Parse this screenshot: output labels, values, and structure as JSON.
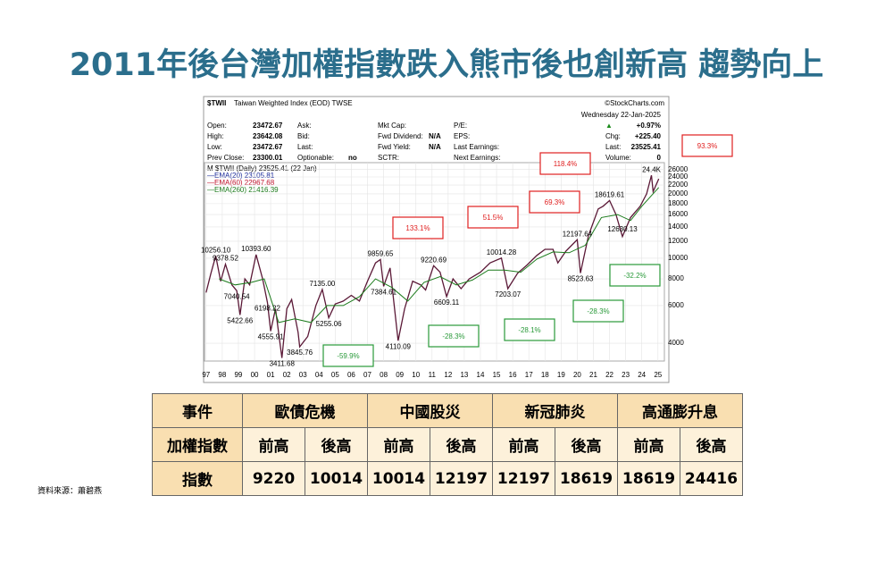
{
  "title": "2011年後台灣加權指數跌入熊市後也創新高 趨勢向上",
  "chart_data": {
    "type": "line",
    "log_scale": true,
    "header": {
      "symbol": "$TWII",
      "name": "Taiwan Weighted Index (EOD) TWSE",
      "copyright": "©StockCharts.com",
      "date": "Wednesday 22-Jan-2025",
      "columns": [
        [
          {
            "label": "Open:",
            "value": "23472.67"
          },
          {
            "label": "High:",
            "value": "23642.08"
          },
          {
            "label": "Low:",
            "value": "23472.67"
          },
          {
            "label": "Prev Close:",
            "value": "23300.01"
          }
        ],
        [
          {
            "label": "Ask:"
          },
          {
            "label": "Bid:"
          },
          {
            "label": "Last:"
          },
          {
            "label": "Optionable:",
            "value": "no"
          }
        ],
        [
          {
            "label": "Mkt Cap:"
          },
          {
            "label": "Fwd Dividend:",
            "value": "N/A"
          },
          {
            "label": "Fwd Yield:",
            "value": "N/A"
          },
          {
            "label": "SCTR:"
          }
        ],
        [
          {
            "label": "P/E:"
          },
          {
            "label": "EPS:"
          },
          {
            "label": "Last Earnings:"
          },
          {
            "label": "Next Earnings:"
          }
        ],
        [
          {
            "label": "▲",
            "value": "+0.97%"
          },
          {
            "label": "Chg:",
            "value": "+225.40"
          },
          {
            "label": "Last:",
            "value": "23525.41"
          },
          {
            "label": "Volume:",
            "value": "0"
          }
        ]
      ],
      "legend": [
        {
          "text": "M $TWII (Daily) 23525.41 (22 Jan)",
          "color": "#000000"
        },
        {
          "text": "—EMA(20) 23105.81",
          "color": "#1a2a9a"
        },
        {
          "text": "—EMA(60) 22967.68",
          "color": "#c0102a"
        },
        {
          "text": "—EMA(260) 21416.39",
          "color": "#1a7a1a"
        }
      ]
    },
    "series": [
      {
        "color": "#5a1836",
        "x": [
          1997.0,
          1997.3,
          1997.6,
          1997.9,
          1998.2,
          1998.6,
          1998.9,
          1999.1,
          1999.4,
          1999.7,
          2000.1,
          2000.5,
          2000.8,
          2001.0,
          2001.3,
          2001.7,
          2002.0,
          2002.3,
          2002.7,
          2002.8,
          2003.3,
          2003.8,
          2004.2,
          2004.6,
          2005.0,
          2005.5,
          2006.0,
          2006.5,
          2007.0,
          2007.5,
          2007.8,
          2008.0,
          2008.4,
          2008.9,
          2009.3,
          2009.8,
          2010.3,
          2010.6,
          2011.1,
          2011.5,
          2011.9,
          2012.3,
          2012.8,
          2013.3,
          2014.0,
          2014.6,
          2015.3,
          2015.7,
          2016.3,
          2016.9,
          2017.5,
          2018.0,
          2018.5,
          2018.8,
          2019.3,
          2019.9,
          2020.0,
          2020.2,
          2020.7,
          2021.3,
          2021.6,
          2022.0,
          2022.4,
          2022.8,
          2023.3,
          2023.9,
          2024.3,
          2024.6,
          2024.7,
          2025.05
        ],
        "values": [
          6900,
          8500,
          10256,
          7800,
          9378,
          7500,
          7040,
          5422,
          8000,
          7500,
          10393,
          8000,
          6198,
          4555,
          5800,
          3411,
          5800,
          6400,
          4500,
          3845,
          4300,
          6000,
          7135,
          5255,
          6100,
          6300,
          6700,
          6300,
          7800,
          9500,
          9859,
          7384,
          9000,
          4110,
          5800,
          7800,
          7500,
          7100,
          9220,
          8600,
          6609,
          8000,
          7200,
          8000,
          8600,
          9500,
          10014,
          7203,
          8500,
          9300,
          10300,
          11000,
          11000,
          9500,
          10800,
          12000,
          12197,
          8523,
          12800,
          17000,
          17500,
          18619,
          16000,
          12630,
          15500,
          17500,
          20000,
          24416,
          20500,
          23525
        ]
      },
      {
        "color": "#1a7a1a",
        "x": [
          1997.8,
          1998.8,
          1999.8,
          2000.6,
          2001.5,
          2002.5,
          2003.5,
          2004.5,
          2005.5,
          2006.5,
          2007.5,
          2008.5,
          2009.5,
          2010.5,
          2011.5,
          2012.5,
          2013.5,
          2014.5,
          2015.5,
          2016.5,
          2017.5,
          2018.5,
          2019.5,
          2020.5,
          2021.5,
          2022.5,
          2023.3,
          2024.0,
          2025.05
        ],
        "values": [
          8000,
          7500,
          7700,
          8000,
          5000,
          5200,
          5000,
          6000,
          6000,
          6600,
          8000,
          7300,
          6300,
          7700,
          8200,
          7500,
          7900,
          8800,
          8800,
          8600,
          9900,
          10700,
          10600,
          11500,
          15500,
          16000,
          15000,
          17500,
          21416
        ]
      }
    ],
    "price_labels": [
      {
        "x": 1997.6,
        "value": 10256.1,
        "label": "10256.10"
      },
      {
        "x": 1998.2,
        "value": 9378.52,
        "label": "9378.52"
      },
      {
        "x": 1998.9,
        "value": 7040.54,
        "label": "7040.54"
      },
      {
        "x": 1999.1,
        "value": 5422.66,
        "label": "5422.66"
      },
      {
        "x": 2000.1,
        "value": 10393.6,
        "label": "10393.60"
      },
      {
        "x": 2000.8,
        "value": 6198.22,
        "label": "6198.22"
      },
      {
        "x": 2001.0,
        "value": 4555.91,
        "label": "4555.91"
      },
      {
        "x": 2001.7,
        "value": 3411.68,
        "label": "3411.68"
      },
      {
        "x": 2002.8,
        "value": 3845.76,
        "label": "3845.76"
      },
      {
        "x": 2004.2,
        "value": 7135,
        "label": "7135.00"
      },
      {
        "x": 2004.6,
        "value": 5255.06,
        "label": "5255.06"
      },
      {
        "x": 2007.8,
        "value": 9859.65,
        "label": "9859.65"
      },
      {
        "x": 2008.0,
        "value": 7384.61,
        "label": "7384.61"
      },
      {
        "x": 2008.9,
        "value": 4110.09,
        "label": "4110.09"
      },
      {
        "x": 2011.1,
        "value": 9220.69,
        "label": "9220.69"
      },
      {
        "x": 2011.9,
        "value": 6609.11,
        "label": "6609.11"
      },
      {
        "x": 2015.3,
        "value": 10014.28,
        "label": "10014.28"
      },
      {
        "x": 2015.7,
        "value": 7203.07,
        "label": "7203.07"
      },
      {
        "x": 2020.0,
        "value": 12197.64,
        "label": "12197.64"
      },
      {
        "x": 2020.2,
        "value": 8523.63,
        "label": "8523.63"
      },
      {
        "x": 2022.0,
        "value": 18619.61,
        "label": "18619.61"
      },
      {
        "x": 2022.8,
        "value": 12630.13,
        "label": "12630.13"
      },
      {
        "x": 2024.6,
        "value": 24416,
        "label": "24.4K"
      }
    ],
    "callouts": [
      {
        "text": "133.1%",
        "color": "#e02020"
      },
      {
        "text": "-28.3%",
        "color": "#2a9a3a"
      },
      {
        "text": "51.5%",
        "color": "#e02020"
      },
      {
        "text": "-28.1%",
        "color": "#2a9a3a"
      },
      {
        "text": "69.3%",
        "color": "#e02020"
      },
      {
        "text": "-28.3%",
        "color": "#2a9a3a"
      },
      {
        "text": "118.4%",
        "color": "#e02020"
      },
      {
        "text": "-32.2%",
        "color": "#2a9a3a"
      },
      {
        "text": "93.3%",
        "color": "#e02020"
      },
      {
        "text": "-59.9%",
        "color": "#2a9a3a"
      }
    ],
    "xlim": [
      1996.9,
      2025.4
    ],
    "xticks": [
      {
        "value": 1997,
        "label": "97"
      },
      {
        "value": 1998,
        "label": "98"
      },
      {
        "value": 1999,
        "label": "99"
      },
      {
        "value": 2000,
        "label": "00"
      },
      {
        "value": 2001,
        "label": "01"
      },
      {
        "value": 2002,
        "label": "02"
      },
      {
        "value": 2003,
        "label": "03"
      },
      {
        "value": 2004,
        "label": "04"
      },
      {
        "value": 2005,
        "label": "05"
      },
      {
        "value": 2006,
        "label": "06"
      },
      {
        "value": 2007,
        "label": "07"
      },
      {
        "value": 2008,
        "label": "08"
      },
      {
        "value": 2009,
        "label": "09"
      },
      {
        "value": 2010,
        "label": "10"
      },
      {
        "value": 2011,
        "label": "11"
      },
      {
        "value": 2012,
        "label": "12"
      },
      {
        "value": 2013,
        "label": "13"
      },
      {
        "value": 2014,
        "label": "14"
      },
      {
        "value": 2015,
        "label": "15"
      },
      {
        "value": 2016,
        "label": "16"
      },
      {
        "value": 2017,
        "label": "17"
      },
      {
        "value": 2018,
        "label": "18"
      },
      {
        "value": 2019,
        "label": "19"
      },
      {
        "value": 2020,
        "label": "20"
      },
      {
        "value": 2021,
        "label": "21"
      },
      {
        "value": 2022,
        "label": "22"
      },
      {
        "value": 2023,
        "label": "23"
      },
      {
        "value": 2024,
        "label": "24"
      },
      {
        "value": 2025,
        "label": "25"
      }
    ],
    "ylim": [
      3300,
      28000
    ],
    "yticks": [
      4000,
      6000,
      8000,
      10000,
      12000,
      14000,
      16000,
      18000,
      20000,
      22000,
      24000,
      26000
    ],
    "grid": true
  },
  "table": {
    "header": [
      "事件",
      "歐債危機",
      "中國股災",
      "新冠肺炎",
      "高通膨升息"
    ],
    "rows": [
      [
        "加權指數",
        "前高",
        "後高",
        "前高",
        "後高",
        "前高",
        "後高",
        "前高",
        "後高"
      ],
      [
        "指數",
        "9220",
        "10014",
        "10014",
        "12197",
        "12197",
        "18619",
        "18619",
        "24416"
      ]
    ]
  },
  "source": "資料來源：蕭碧燕"
}
